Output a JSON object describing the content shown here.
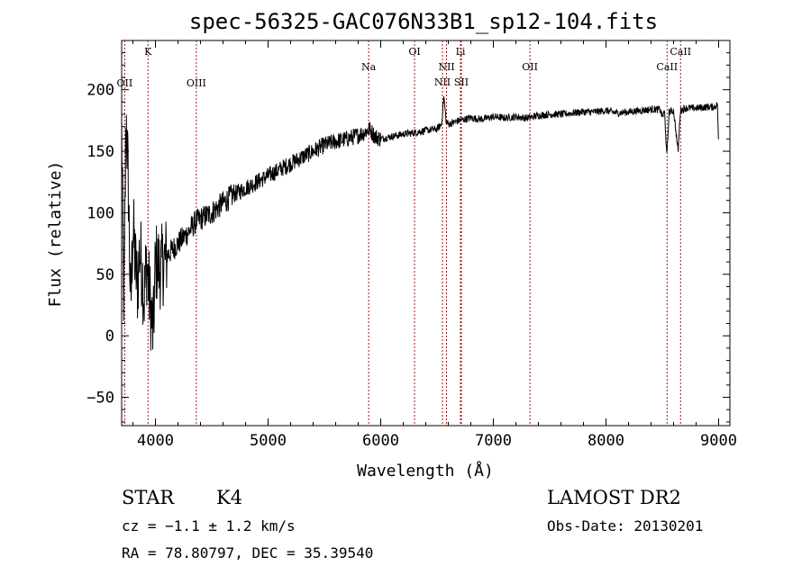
{
  "chart_data": {
    "type": "line",
    "title": "spec-56325-GAC076N33B1_sp12-104.fits",
    "xlabel": "Wavelength (Å)",
    "ylabel": "Flux (relative)",
    "xlim": [
      3700,
      9100
    ],
    "ylim": [
      -73,
      240
    ],
    "x_ticks": [
      4000,
      5000,
      6000,
      7000,
      8000,
      9000
    ],
    "y_ticks": [
      -50,
      0,
      50,
      100,
      150,
      200
    ],
    "grid": false,
    "series": [
      {
        "x": [
          3700,
          3720,
          3740,
          3760,
          3780,
          3800,
          3820,
          3840,
          3860,
          3880,
          3900,
          3920,
          3940,
          3960,
          3980,
          4000,
          4050,
          4100,
          4150,
          4200,
          4250,
          4300,
          4350,
          4400,
          4500,
          4600,
          4700,
          4800,
          4900,
          5000,
          5100,
          5200,
          5300,
          5400,
          5500,
          5600,
          5700,
          5800,
          5850,
          5900,
          5950,
          6000,
          6100,
          6200,
          6300,
          6400,
          6500,
          6540,
          6560,
          6580,
          6600,
          6700,
          6800,
          6900,
          7000,
          7100,
          7200,
          7300,
          7400,
          7500,
          7600,
          7700,
          7800,
          7900,
          8000,
          8100,
          8200,
          8300,
          8400,
          8480,
          8500,
          8520,
          8540,
          8560,
          8600,
          8640,
          8660,
          8680,
          8700,
          8800,
          8900,
          8960,
          8990,
          9000
        ],
        "y": [
          170,
          20,
          180,
          120,
          20,
          90,
          60,
          40,
          70,
          55,
          30,
          60,
          40,
          20,
          0,
          60,
          55,
          65,
          70,
          75,
          80,
          85,
          92,
          95,
          100,
          108,
          115,
          120,
          125,
          130,
          135,
          140,
          145,
          150,
          155,
          158,
          160,
          163,
          165,
          168,
          162,
          160,
          162,
          164,
          165,
          167,
          168,
          172,
          195,
          175,
          172,
          175,
          177,
          176,
          178,
          177,
          178,
          177,
          179,
          180,
          180,
          181,
          182,
          182,
          183,
          181,
          182,
          183,
          184,
          184,
          178,
          182,
          145,
          182,
          183,
          150,
          183,
          184,
          185,
          185,
          186,
          186,
          188,
          150
        ]
      }
    ],
    "line_markers": [
      {
        "name": "OII",
        "wavelength": 3727,
        "label_row": "low"
      },
      {
        "name": "K",
        "wavelength": 3934,
        "label_row": "high"
      },
      {
        "name": "OIII",
        "wavelength": 4363,
        "label_row": "low"
      },
      {
        "name": "Na",
        "wavelength": 5893,
        "label_row": "mid"
      },
      {
        "name": "OI",
        "wavelength": 6300,
        "label_row": "high"
      },
      {
        "name": "NII",
        "wavelength": 6548,
        "label_row": "lowest"
      },
      {
        "name": "NII",
        "wavelength": 6584,
        "label_row": "mid"
      },
      {
        "name": "Li",
        "wavelength": 6708,
        "label_row": "high"
      },
      {
        "name": "SII",
        "wavelength": 6716,
        "label_row": "lowest"
      },
      {
        "name": "OII",
        "wavelength": 7325,
        "label_row": "mid"
      },
      {
        "name": "CaII",
        "wavelength": 8542,
        "label_row": "mid"
      },
      {
        "name": "CaII",
        "wavelength": 8662,
        "label_row": "high"
      }
    ]
  },
  "info": {
    "object_class": "STAR",
    "subclass": "K4",
    "survey": "LAMOST DR2",
    "redshift_text": "cz = −1.1 ± 1.2 km/s",
    "obs_date": "Obs-Date: 20130201",
    "coords": "RA =  78.80797, DEC =  35.39540"
  }
}
